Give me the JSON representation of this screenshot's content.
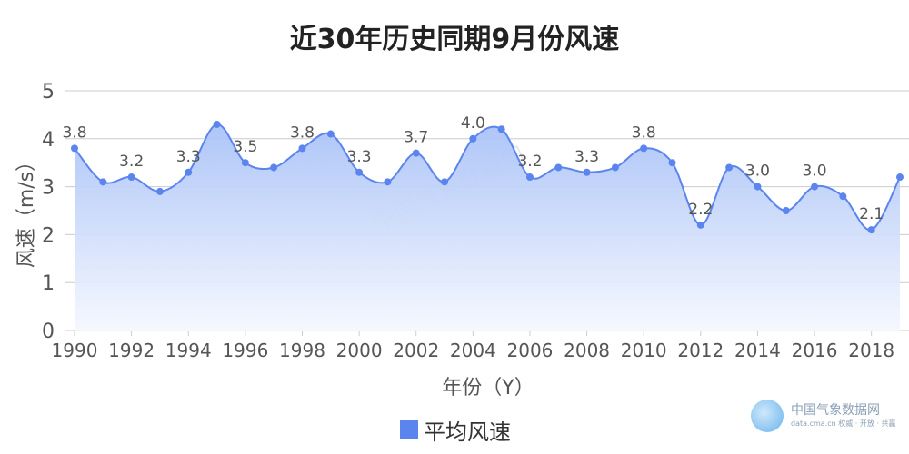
{
  "chart_data": {
    "type": "area",
    "title": "近30年历史同期9月份风速",
    "xlabel": "年份（Y）",
    "ylabel": "风速（m/s）",
    "ylim": [
      0,
      5
    ],
    "yticks": [
      0,
      1,
      2,
      3,
      4,
      5
    ],
    "x": [
      1990,
      1991,
      1992,
      1993,
      1994,
      1995,
      1996,
      1997,
      1998,
      1999,
      2000,
      2001,
      2002,
      2003,
      2004,
      2005,
      2006,
      2007,
      2008,
      2009,
      2010,
      2011,
      2012,
      2013,
      2014,
      2015,
      2016,
      2017,
      2018,
      2019
    ],
    "xticks": [
      1990,
      1992,
      1994,
      1996,
      1998,
      2000,
      2002,
      2004,
      2006,
      2008,
      2010,
      2012,
      2014,
      2016,
      2018
    ],
    "series": [
      {
        "name": "平均风速",
        "values": [
          3.8,
          3.1,
          3.2,
          2.9,
          3.3,
          4.3,
          3.5,
          3.4,
          3.8,
          4.1,
          3.3,
          3.1,
          3.7,
          3.1,
          4.0,
          4.2,
          3.2,
          3.4,
          3.3,
          3.4,
          3.8,
          3.5,
          2.2,
          3.4,
          3.0,
          2.5,
          3.0,
          2.8,
          2.1,
          3.2
        ],
        "labels": [
          "3.8",
          "",
          "3.2",
          "",
          "3.3",
          "",
          "3.5",
          "",
          "3.8",
          "",
          "3.3",
          "",
          "3.7",
          "",
          "4.0",
          "",
          "3.2",
          "",
          "3.3",
          "",
          "3.8",
          "",
          "2.2",
          "",
          "3.0",
          "",
          "3.0",
          "",
          "2.1",
          ""
        ]
      }
    ],
    "grid": true,
    "legend": "bottom-center",
    "colors": {
      "line": "#5b84ee",
      "point": "#5b84ee",
      "area_top": "#a9c2f7",
      "area_bottom": "#f4f7fe",
      "grid": "#cccccc",
      "axis_text": "#555555",
      "label_text": "#555555"
    }
  },
  "watermark": {
    "center_text": "中国气象数据网",
    "brand_name": "中国气象数据网",
    "brand_url": "data.cma.cn 权威 · 开放 · 共赢"
  }
}
